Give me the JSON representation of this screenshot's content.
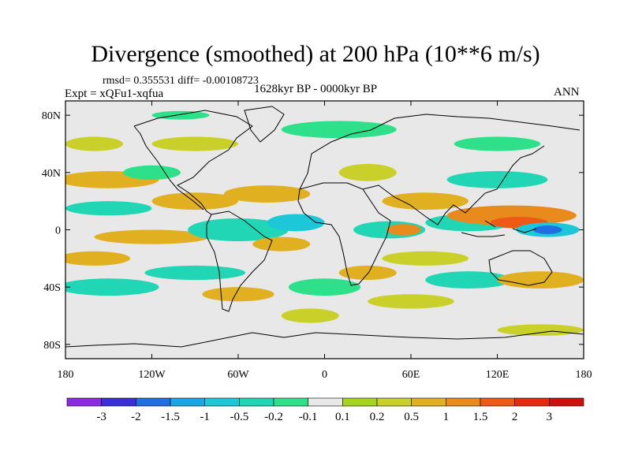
{
  "chart_data": {
    "type": "heatmap",
    "title": "Divergence (smoothed) at 200 hPa (10**6 m/s)",
    "stats_text": "rmsd= 0.355531  diff= -0.00108723",
    "left_label": "Expt = xQFu1-xqfua",
    "center_label": "1628kyr BP - 0000kyr BP",
    "right_label": "ANN",
    "x_ticks": [
      "180",
      "120W",
      "60W",
      "0",
      "60E",
      "120E",
      "180"
    ],
    "y_ticks": [
      "80N",
      "40N",
      "0",
      "40S",
      "80S"
    ],
    "xlim": [
      -180,
      180
    ],
    "ylim": [
      -90,
      90
    ],
    "colorbar": {
      "labels": [
        "-3",
        "-2",
        "-1.5",
        "-1",
        "-0.5",
        "-0.2",
        "-0.1",
        "0.1",
        "0.2",
        "0.5",
        "1",
        "1.5",
        "2",
        "3"
      ],
      "colors": [
        "#8a2be2",
        "#3a2fd6",
        "#1f6fe0",
        "#1aa5e6",
        "#1cc8d8",
        "#20d6b4",
        "#2ee08a",
        "#e8e8e8",
        "#a6d41e",
        "#c9d02a",
        "#e0b020",
        "#e88a1c",
        "#ec5a16",
        "#e62a12",
        "#cc1010"
      ]
    },
    "blobs": [
      {
        "lon": -150,
        "lat": 15,
        "rx": 30,
        "ry": 5,
        "value": -0.5
      },
      {
        "lon": -160,
        "lat": -20,
        "rx": 25,
        "ry": 5,
        "value": 0.5
      },
      {
        "lon": -150,
        "lat": 35,
        "rx": 35,
        "ry": 6,
        "value": 0.5
      },
      {
        "lon": -120,
        "lat": 40,
        "rx": 20,
        "ry": 5,
        "value": -0.2
      },
      {
        "lon": -90,
        "lat": 20,
        "rx": 30,
        "ry": 6,
        "value": 0.5
      },
      {
        "lon": -120,
        "lat": -5,
        "rx": 40,
        "ry": 5,
        "value": 0.5
      },
      {
        "lon": -60,
        "lat": 0,
        "rx": 35,
        "ry": 8,
        "value": -0.5
      },
      {
        "lon": -20,
        "lat": 5,
        "rx": 20,
        "ry": 6,
        "value": -1
      },
      {
        "lon": -40,
        "lat": 25,
        "rx": 30,
        "ry": 6,
        "value": 0.5
      },
      {
        "lon": -150,
        "lat": -40,
        "rx": 35,
        "ry": 6,
        "value": -0.5
      },
      {
        "lon": -90,
        "lat": -30,
        "rx": 35,
        "ry": 5,
        "value": -0.5
      },
      {
        "lon": -60,
        "lat": -45,
        "rx": 25,
        "ry": 5,
        "value": 0.5
      },
      {
        "lon": -30,
        "lat": -10,
        "rx": 20,
        "ry": 5,
        "value": 0.5
      },
      {
        "lon": 0,
        "lat": -40,
        "rx": 25,
        "ry": 6,
        "value": -0.2
      },
      {
        "lon": -10,
        "lat": -60,
        "rx": 20,
        "ry": 5,
        "value": 0.2
      },
      {
        "lon": 30,
        "lat": 40,
        "rx": 20,
        "ry": 6,
        "value": 0.2
      },
      {
        "lon": 10,
        "lat": 70,
        "rx": 40,
        "ry": 6,
        "value": -0.2
      },
      {
        "lon": -100,
        "lat": 80,
        "rx": 20,
        "ry": 3,
        "value": -0.2
      },
      {
        "lon": 45,
        "lat": 0,
        "rx": 25,
        "ry": 6,
        "value": -0.5
      },
      {
        "lon": 55,
        "lat": 0,
        "rx": 12,
        "ry": 4,
        "value": 1
      },
      {
        "lon": 70,
        "lat": -20,
        "rx": 30,
        "ry": 5,
        "value": 0.2
      },
      {
        "lon": 70,
        "lat": 20,
        "rx": 30,
        "ry": 6,
        "value": 0.5
      },
      {
        "lon": 100,
        "lat": 5,
        "rx": 30,
        "ry": 6,
        "value": -0.5
      },
      {
        "lon": 130,
        "lat": 10,
        "rx": 45,
        "ry": 7,
        "value": 1
      },
      {
        "lon": 135,
        "lat": 5,
        "rx": 20,
        "ry": 4,
        "value": 1.5
      },
      {
        "lon": 155,
        "lat": 0,
        "rx": 22,
        "ry": 5,
        "value": -1
      },
      {
        "lon": 155,
        "lat": 0,
        "rx": 10,
        "ry": 3,
        "value": -2
      },
      {
        "lon": 120,
        "lat": 35,
        "rx": 35,
        "ry": 6,
        "value": -0.5
      },
      {
        "lon": 100,
        "lat": -35,
        "rx": 30,
        "ry": 6,
        "value": -0.5
      },
      {
        "lon": 150,
        "lat": -35,
        "rx": 30,
        "ry": 6,
        "value": 0.5
      },
      {
        "lon": 30,
        "lat": -30,
        "rx": 20,
        "ry": 5,
        "value": 0.5
      },
      {
        "lon": 60,
        "lat": -50,
        "rx": 30,
        "ry": 5,
        "value": 0.2
      },
      {
        "lon": -90,
        "lat": 60,
        "rx": 30,
        "ry": 5,
        "value": 0.2
      },
      {
        "lon": 120,
        "lat": 60,
        "rx": 30,
        "ry": 5,
        "value": -0.2
      },
      {
        "lon": 150,
        "lat": -70,
        "rx": 30,
        "ry": 4,
        "value": 0.2
      },
      {
        "lon": -160,
        "lat": 60,
        "rx": 20,
        "ry": 5,
        "value": 0.2
      }
    ]
  }
}
